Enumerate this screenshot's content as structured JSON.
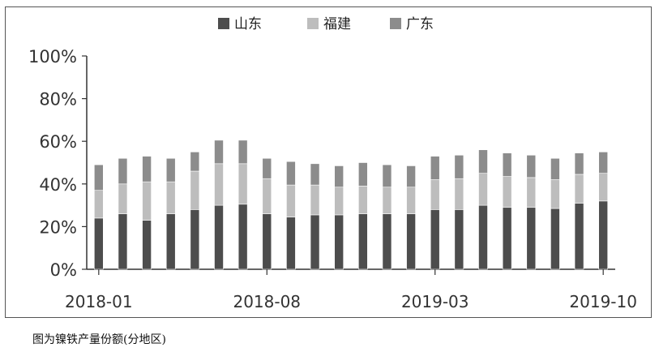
{
  "caption": "图为镍铁产量份额(分地区)",
  "colors": {
    "shandong": "#4d4d4d",
    "fujian": "#bdbdbd",
    "guangdong": "#8c8c8c",
    "axis": "#333333"
  },
  "chart_data": {
    "type": "bar",
    "stacked": true,
    "title": "",
    "xlabel": "",
    "ylabel": "",
    "ylim": [
      0,
      100
    ],
    "yticks": [
      "0%",
      "20%",
      "40%",
      "60%",
      "80%",
      "100%"
    ],
    "xtick_labels": [
      "2018-01",
      "2018-08",
      "2019-03",
      "2019-10"
    ],
    "legend_position": "top-center",
    "grid": false,
    "categories": [
      "2018-01",
      "2018-02",
      "2018-03",
      "2018-04",
      "2018-05",
      "2018-06",
      "2018-07",
      "2018-08",
      "2018-09",
      "2018-10",
      "2018-11",
      "2018-12",
      "2019-01",
      "2019-02",
      "2019-03",
      "2019-04",
      "2019-05",
      "2019-06",
      "2019-07",
      "2019-08",
      "2019-09",
      "2019-10"
    ],
    "series": [
      {
        "name": "山东",
        "values": [
          24,
          26,
          23,
          26,
          28,
          30,
          30.5,
          26,
          24.5,
          25.5,
          25.5,
          26,
          26,
          26,
          28,
          28,
          30,
          29,
          29,
          28.5,
          31,
          32
        ]
      },
      {
        "name": "福建",
        "values": [
          13,
          14,
          18,
          15,
          18,
          19.5,
          19,
          16.5,
          15,
          14,
          13,
          13,
          12.5,
          12.5,
          14,
          14.5,
          15,
          14.5,
          14,
          13.5,
          13.5,
          13
        ]
      },
      {
        "name": "广东",
        "values": [
          12,
          12,
          12,
          11,
          9,
          11,
          11,
          9.5,
          11,
          10,
          10,
          11,
          10.5,
          10,
          11,
          11,
          11,
          11,
          10.5,
          10,
          10,
          10
        ]
      }
    ]
  }
}
